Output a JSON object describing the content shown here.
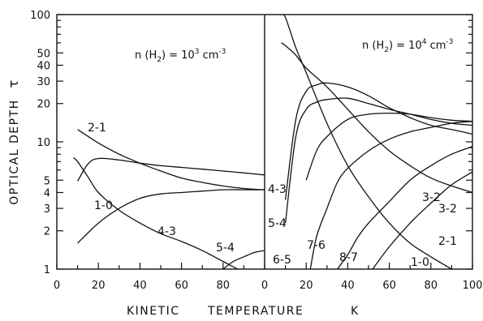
{
  "chart_data": {
    "type": "line",
    "y_axis": {
      "label": "OPTICAL DEPTH",
      "symbol": "τ",
      "scale": "log",
      "ylim": [
        1,
        100
      ],
      "tick_labels": [
        "1",
        "2",
        "3",
        "4",
        "5",
        "10",
        "20",
        "30",
        "40",
        "50",
        "100"
      ]
    },
    "x_axis": {
      "label_parts": [
        "KINETIC",
        "TEMPERATURE",
        "K"
      ],
      "tick_labels_left": [
        "0",
        "20",
        "40",
        "60",
        "80"
      ],
      "tick_labels_right": [
        "0",
        "20",
        "40",
        "60",
        "80",
        "100"
      ]
    },
    "panels": [
      {
        "density": {
          "prefix": "n (H",
          "sub": "2",
          "mid": ") = 10",
          "sup": "3",
          "unit": " cm",
          "unit_sup": "-3"
        },
        "xlim": [
          0,
          100
        ],
        "series": [
          {
            "name": "2-1",
            "x": [
              10,
              20,
              30,
              40,
              50,
              60,
              70,
              80,
              90,
              100
            ],
            "y": [
              12.5,
              9.8,
              8.0,
              6.8,
              5.9,
              5.2,
              4.8,
              4.5,
              4.3,
              4.2
            ]
          },
          {
            "name": "3-2",
            "x": [
              10,
              15,
              20,
              30,
              40,
              50,
              60,
              70,
              80,
              90,
              100
            ],
            "y": [
              4.9,
              6.7,
              7.4,
              7.2,
              6.8,
              6.5,
              6.3,
              6.1,
              5.9,
              5.7,
              5.5
            ]
          },
          {
            "name": "1-0",
            "x": [
              8,
              10,
              15,
              20,
              30,
              40,
              50,
              60,
              70,
              80,
              90,
              100
            ],
            "y": [
              7.5,
              7.0,
              5.3,
              4.0,
              2.9,
              2.3,
              1.9,
              1.65,
              1.4,
              1.15,
              0.95,
              0.85
            ]
          },
          {
            "name": "4-3",
            "x": [
              10,
              20,
              30,
              40,
              50,
              60,
              70,
              80,
              90,
              100
            ],
            "y": [
              1.6,
              2.3,
              3.0,
              3.6,
              3.9,
              4.0,
              4.1,
              4.2,
              4.2,
              4.2
            ]
          },
          {
            "name": "5-4",
            "x": [
              80,
              85,
              90,
              95,
              100
            ],
            "y": [
              1.0,
              1.15,
              1.25,
              1.35,
              1.4
            ]
          }
        ]
      },
      {
        "density": {
          "prefix": "n (H",
          "sub": "2",
          "mid": ") = 10",
          "sup": "4",
          "unit": " cm",
          "unit_sup": "-3"
        },
        "xlim": [
          0,
          100
        ],
        "series": [
          {
            "name": "1-0",
            "x": [
              8,
              10,
              15,
              20,
              30,
              40,
              50,
              60,
              70,
              80,
              90
            ],
            "y": [
              100,
              95,
              55,
              35,
              14,
              6.5,
              3.7,
              2.3,
              1.6,
              1.25,
              1.0
            ]
          },
          {
            "name": "2-1",
            "x": [
              8,
              10,
              15,
              20,
              30,
              40,
              50,
              60,
              70,
              80,
              90,
              100
            ],
            "y": [
              60,
              57,
              48,
              38,
              27,
              18,
              12,
              8.5,
              6.5,
              5.2,
              4.5,
              4.0
            ]
          },
          {
            "name": "3-2",
            "x": [
              10,
              15,
              20,
              25,
              30,
              40,
              50,
              60,
              70,
              80,
              90,
              100
            ],
            "y": [
              3.5,
              15,
              25,
              28,
              29,
              27,
              23,
              18.5,
              15.5,
              13.5,
              12.5,
              11.5
            ]
          },
          {
            "name": "4-3",
            "x": [
              10,
              15,
              20,
              25,
              30,
              40,
              50,
              60,
              70,
              80,
              90,
              100
            ],
            "y": [
              2.3,
              11,
              18,
              20.5,
              21.5,
              22,
              20,
              18,
              16.5,
              15,
              14,
              13.5
            ]
          },
          {
            "name": "5-4",
            "x": [
              20,
              25,
              30,
              40,
              50,
              60,
              70,
              80,
              90,
              100
            ],
            "y": [
              5,
              8.5,
              11,
              15,
              16.5,
              16.8,
              16.5,
              15.5,
              14.8,
              14.5
            ]
          },
          {
            "name": "6-5",
            "x": [
              22,
              25,
              30,
              35,
              40,
              50,
              60,
              70,
              80,
              90,
              100
            ],
            "y": [
              1,
              1.8,
              3.0,
              4.8,
              6.2,
              8.5,
              10.5,
              12,
              13,
              14,
              14.5
            ]
          },
          {
            "name": "7-6",
            "x": [
              35,
              40,
              45,
              50,
              60,
              70,
              80,
              90,
              100
            ],
            "y": [
              1,
              1.3,
              1.8,
              2.3,
              3.4,
              5.0,
              6.5,
              8.0,
              9.2
            ]
          },
          {
            "name": "8-7",
            "x": [
              52,
              60,
              70,
              80,
              90,
              100
            ],
            "y": [
              1,
              1.5,
              2.3,
              3.3,
              4.6,
              5.8
            ]
          }
        ]
      }
    ]
  }
}
